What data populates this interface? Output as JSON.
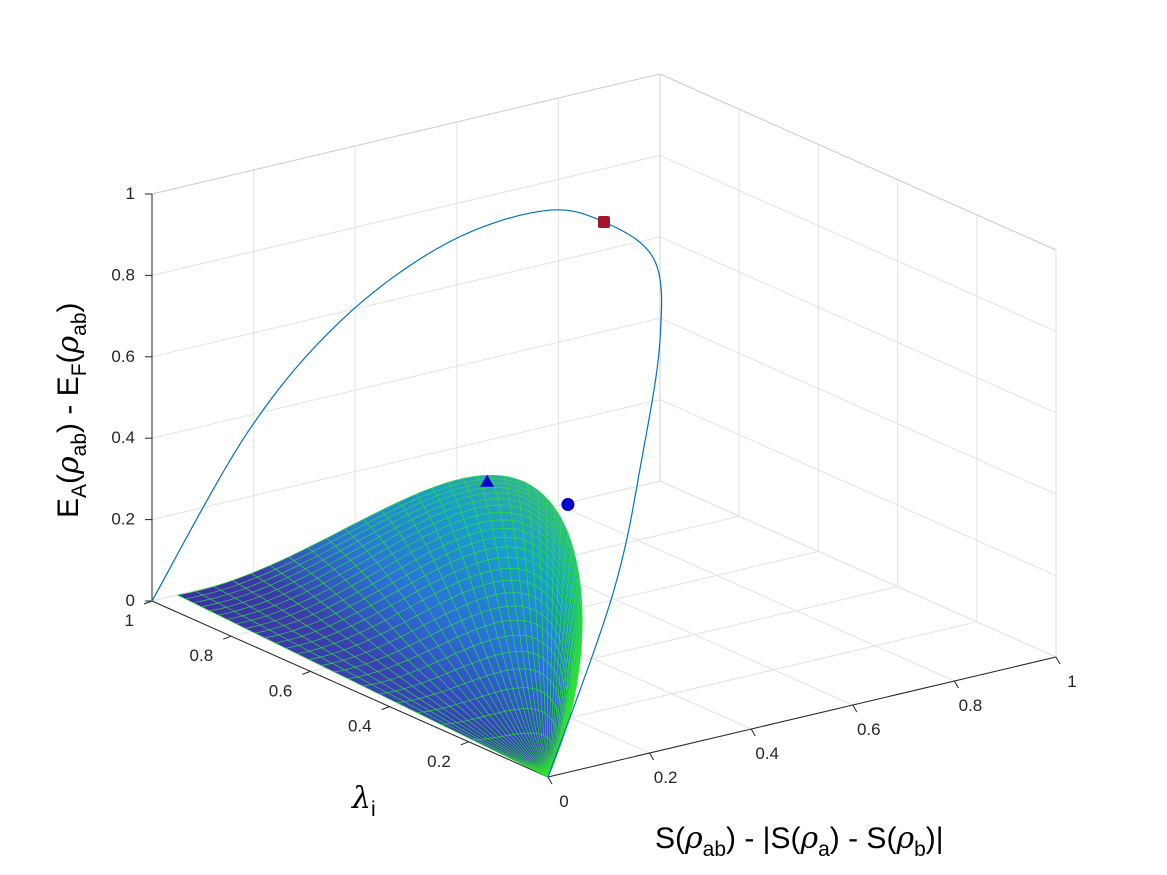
{
  "chart_data": {
    "type": "surface3d",
    "axes": {
      "x": {
        "ticks": [
          "0",
          "0.2",
          "0.4",
          "0.6",
          "0.8",
          "1"
        ],
        "range": [
          0,
          1
        ]
      },
      "y": {
        "ticks": [
          "0.2",
          "0.4",
          "0.6",
          "0.8",
          "1"
        ],
        "range": [
          0,
          1
        ]
      },
      "z": {
        "ticks": [
          "0",
          "0.2",
          "0.4",
          "0.6",
          "0.8",
          "1"
        ],
        "range": [
          0,
          1
        ]
      }
    },
    "labels": {
      "x": {
        "a": "S(",
        "rho1": "ρ",
        "sub1": "ab",
        "b": ") - |S(",
        "rho2": "ρ",
        "sub2": "a",
        "c": ") - S(",
        "rho3": "ρ",
        "sub3": "b",
        "d": ")|"
      },
      "y": {
        "lam": "λ",
        "sub": "i"
      },
      "z": {
        "a": "E",
        "sub1": "A",
        "b": "(",
        "rho1": "ρ",
        "sub2": "ab",
        "c": ") - E",
        "sub3": "F",
        "d": "(",
        "rho2": "ρ",
        "sub4": "ab",
        "e": ")"
      }
    },
    "grid": true,
    "colormap": "parula",
    "surface_peak_z": 0.37,
    "curve": {
      "color": "#0072bd",
      "points": [
        [
          0,
          1,
          0
        ],
        [
          0.16,
          0.96,
          0.39
        ],
        [
          0.28,
          0.88,
          0.66
        ],
        [
          0.4,
          0.77,
          0.86
        ],
        [
          0.49,
          0.64,
          0.97
        ],
        [
          0.5,
          0.5,
          1.0
        ],
        [
          0.49,
          0.36,
          0.97
        ],
        [
          0.4,
          0.23,
          0.86
        ],
        [
          0.28,
          0.12,
          0.66
        ],
        [
          0.16,
          0.04,
          0.39
        ],
        [
          0,
          0,
          0
        ]
      ]
    },
    "markers": [
      {
        "shape": "square",
        "color": "#a2142f",
        "point": [
          0.5,
          0.5,
          1.0
        ]
      },
      {
        "shape": "triangle",
        "color": "#0000cd",
        "point": [
          0.34,
          0.59,
          0.37
        ]
      },
      {
        "shape": "circle",
        "color": "#0000cd",
        "point": [
          0.39,
          0.45,
          0.36
        ]
      }
    ]
  }
}
